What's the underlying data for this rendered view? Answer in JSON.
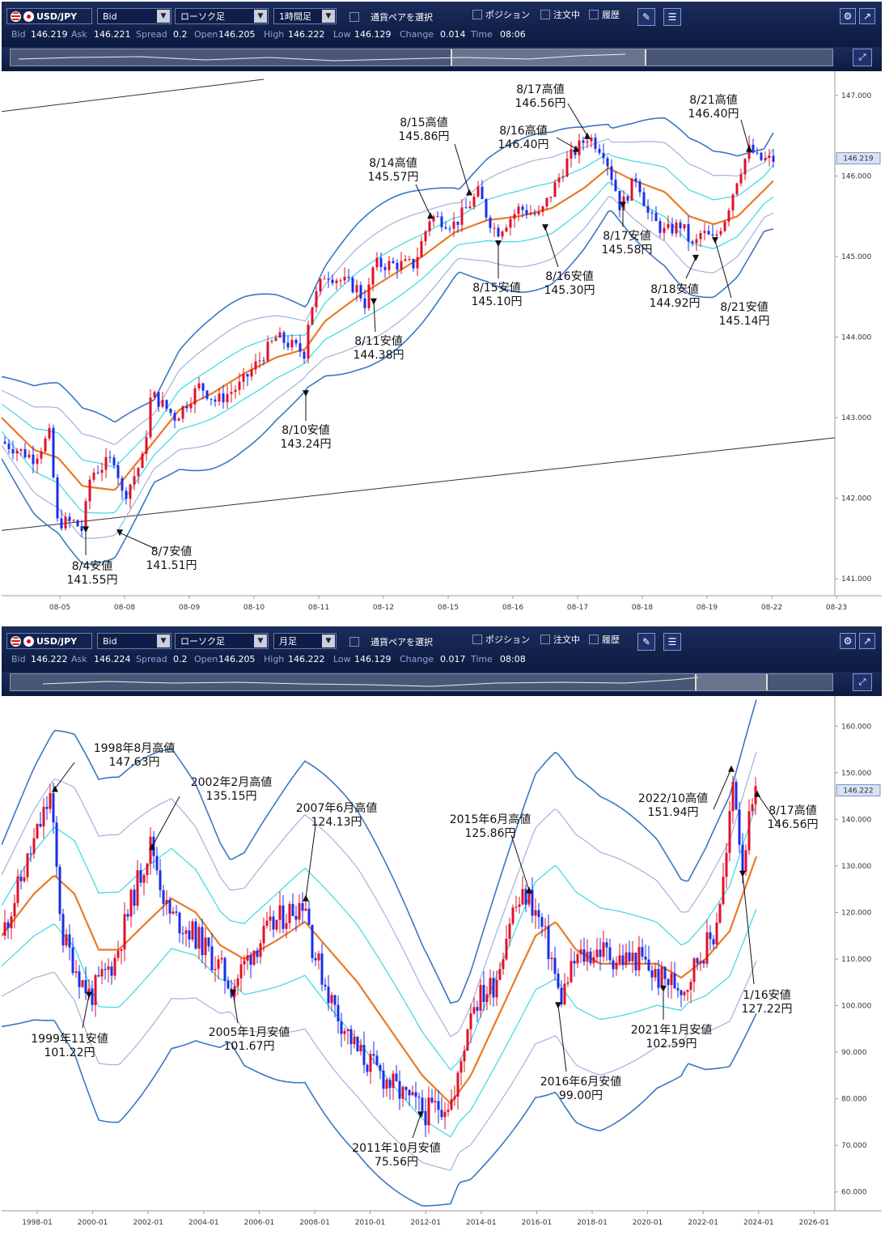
{
  "panels": [
    {
      "toolbar": {
        "pair": "USD/JPY",
        "price_type": "Bid",
        "chart_type": "ローソク足",
        "period": "1時間足",
        "pair_select": "通貨ペアを選択",
        "position": "ポジション",
        "orders": "注文中",
        "history": "履歴"
      },
      "info": {
        "bid_label": "Bid",
        "bid": "146.219",
        "ask_label": "Ask",
        "ask": "146.221",
        "spread_label": "Spread",
        "spread": "0.2",
        "open_label": "Open",
        "open": "146.205",
        "high_label": "High",
        "high": "146.222",
        "low_label": "Low",
        "low": "146.129",
        "change_label": "Change",
        "change": "0.014",
        "time_label": "Time",
        "time": "08:06"
      },
      "current_price": "146.219",
      "chart_data": {
        "type": "candlestick",
        "price_axis": [
          "147.000",
          "146.000",
          "145.000",
          "144.000",
          "143.000",
          "142.000",
          "141.000"
        ],
        "ylim": [
          140.85,
          147.2
        ],
        "date_axis": [
          "08-05",
          "08-08",
          "08-09",
          "08-10",
          "08-11",
          "08-12",
          "08-15",
          "08-16",
          "08-17",
          "08-18",
          "08-19",
          "08-22",
          "08-23"
        ],
        "path": [
          [
            0,
            142.7
          ],
          [
            40,
            142.5
          ],
          [
            60,
            142.8
          ],
          [
            68,
            141.7
          ],
          [
            90,
            141.7
          ],
          [
            100,
            141.6
          ],
          [
            110,
            142.3
          ],
          [
            140,
            142.5
          ],
          [
            150,
            142.0
          ],
          [
            175,
            142.5
          ],
          [
            185,
            143.3
          ],
          [
            215,
            143.0
          ],
          [
            245,
            143.4
          ],
          [
            265,
            143.2
          ],
          [
            295,
            143.4
          ],
          [
            340,
            144.0
          ],
          [
            375,
            143.8
          ],
          [
            380,
            144.3
          ],
          [
            400,
            144.8
          ],
          [
            440,
            144.6
          ],
          [
            450,
            144.4
          ],
          [
            460,
            144.9
          ],
          [
            510,
            144.9
          ],
          [
            530,
            145.5
          ],
          [
            560,
            145.4
          ],
          [
            590,
            145.8
          ],
          [
            600,
            145.5
          ],
          [
            612,
            145.3
          ],
          [
            640,
            145.6
          ],
          [
            665,
            145.5
          ],
          [
            680,
            145.8
          ],
          [
            700,
            146.2
          ],
          [
            725,
            146.5
          ],
          [
            745,
            146.3
          ],
          [
            760,
            145.8
          ],
          [
            765,
            145.6
          ],
          [
            785,
            146.0
          ],
          [
            800,
            145.5
          ],
          [
            820,
            145.3
          ],
          [
            840,
            145.4
          ],
          [
            855,
            145.1
          ],
          [
            865,
            145.3
          ],
          [
            880,
            145.2
          ],
          [
            895,
            145.5
          ],
          [
            910,
            146.0
          ],
          [
            925,
            146.35
          ],
          [
            935,
            146.2
          ],
          [
            955,
            146.2
          ]
        ],
        "mid_band": [
          [
            0,
            143.0
          ],
          [
            40,
            142.6
          ],
          [
            70,
            142.5
          ],
          [
            100,
            142.15
          ],
          [
            140,
            142.1
          ],
          [
            180,
            142.6
          ],
          [
            220,
            143.1
          ],
          [
            260,
            143.3
          ],
          [
            300,
            143.55
          ],
          [
            340,
            143.75
          ],
          [
            375,
            143.85
          ],
          [
            400,
            144.2
          ],
          [
            440,
            144.5
          ],
          [
            480,
            144.75
          ],
          [
            520,
            145.0
          ],
          [
            560,
            145.3
          ],
          [
            600,
            145.45
          ],
          [
            640,
            145.5
          ],
          [
            680,
            145.6
          ],
          [
            720,
            145.85
          ],
          [
            750,
            146.1
          ],
          [
            780,
            145.95
          ],
          [
            820,
            145.8
          ],
          [
            850,
            145.5
          ],
          [
            880,
            145.4
          ],
          [
            910,
            145.5
          ],
          [
            955,
            145.95
          ]
        ],
        "annotations": [
          {
            "label": "8/4安値",
            "value": "141.55円",
            "price": 141.55
          },
          {
            "label": "8/7安値",
            "value": "141.51円",
            "price": 141.51
          },
          {
            "label": "8/10安値",
            "value": "143.24円",
            "price": 143.24
          },
          {
            "label": "8/11安値",
            "value": "144.38円",
            "price": 144.38
          },
          {
            "label": "8/14高値",
            "value": "145.57円",
            "price": 145.57
          },
          {
            "label": "8/15高値",
            "value": "145.86円",
            "price": 145.86
          },
          {
            "label": "8/15安値",
            "value": "145.10円",
            "price": 145.1
          },
          {
            "label": "8/16高値",
            "value": "146.40円",
            "price": 146.4
          },
          {
            "label": "8/16安値",
            "value": "145.30円",
            "price": 145.3
          },
          {
            "label": "8/17高値",
            "value": "146.56円",
            "price": 146.56
          },
          {
            "label": "8/17安値",
            "value": "145.58円",
            "price": 145.58
          },
          {
            "label": "8/18安値",
            "value": "144.92円",
            "price": 144.92
          },
          {
            "label": "8/21高値",
            "value": "146.40円",
            "price": 146.4
          },
          {
            "label": "8/21安値",
            "value": "145.14円",
            "price": 145.14
          }
        ]
      }
    },
    {
      "toolbar": {
        "pair": "USD/JPY",
        "price_type": "Bid",
        "chart_type": "ローソク足",
        "period": "月足",
        "pair_select": "通貨ペアを選択",
        "position": "ポジション",
        "orders": "注文中",
        "history": "履歴"
      },
      "info": {
        "bid_label": "Bid",
        "bid": "146.222",
        "ask_label": "Ask",
        "ask": "146.224",
        "spread_label": "Spread",
        "spread": "0.2",
        "open_label": "Open",
        "open": "146.205",
        "high_label": "High",
        "high": "146.222",
        "low_label": "Low",
        "low": "146.129",
        "change_label": "Change",
        "change": "0.017",
        "time_label": "Time",
        "time": "08:08"
      },
      "current_price": "146.222",
      "chart_data": {
        "type": "candlestick",
        "price_axis": [
          "160.000",
          "150.000",
          "140.000",
          "130.000",
          "120.000",
          "110.000",
          "100.000",
          "90.000",
          "80.000",
          "70.000",
          "60.000"
        ],
        "ylim": [
          57,
          163
        ],
        "date_axis": [
          "1998-01",
          "2000-01",
          "2002-01",
          "2004-01",
          "2006-01",
          "2008-01",
          "2010-01",
          "2012-01",
          "2014-01",
          "2016-01",
          "2018-01",
          "2020-01",
          "2022-01",
          "2024-01",
          "2026-01"
        ],
        "path": [
          [
            0,
            115
          ],
          [
            30,
            130
          ],
          [
            60,
            145
          ],
          [
            75,
            115
          ],
          [
            100,
            105
          ],
          [
            110,
            102
          ],
          [
            140,
            110
          ],
          [
            165,
            125
          ],
          [
            185,
            135
          ],
          [
            205,
            120
          ],
          [
            240,
            115
          ],
          [
            270,
            108
          ],
          [
            285,
            104
          ],
          [
            310,
            112
          ],
          [
            340,
            118
          ],
          [
            375,
            123
          ],
          [
            385,
            112
          ],
          [
            410,
            100
          ],
          [
            440,
            90
          ],
          [
            470,
            85
          ],
          [
            500,
            80
          ],
          [
            525,
            77
          ],
          [
            545,
            79
          ],
          [
            560,
            80
          ],
          [
            580,
            100
          ],
          [
            610,
            105
          ],
          [
            630,
            120
          ],
          [
            650,
            124
          ],
          [
            665,
            118
          ],
          [
            680,
            110
          ],
          [
            690,
            101
          ],
          [
            710,
            110
          ],
          [
            740,
            112
          ],
          [
            760,
            110
          ],
          [
            790,
            110
          ],
          [
            810,
            106
          ],
          [
            830,
            105
          ],
          [
            845,
            104
          ],
          [
            860,
            110
          ],
          [
            880,
            115
          ],
          [
            895,
            130
          ],
          [
            905,
            150
          ],
          [
            915,
            130
          ],
          [
            925,
            140
          ],
          [
            935,
            146
          ]
        ],
        "mid_band": [
          [
            0,
            115
          ],
          [
            40,
            124
          ],
          [
            65,
            128
          ],
          [
            90,
            124
          ],
          [
            120,
            112
          ],
          [
            145,
            112
          ],
          [
            180,
            118
          ],
          [
            210,
            123
          ],
          [
            240,
            120
          ],
          [
            270,
            113
          ],
          [
            300,
            110
          ],
          [
            340,
            114
          ],
          [
            375,
            118
          ],
          [
            400,
            113
          ],
          [
            440,
            105
          ],
          [
            480,
            95
          ],
          [
            520,
            85
          ],
          [
            555,
            79
          ],
          [
            580,
            85
          ],
          [
            620,
            100
          ],
          [
            660,
            115
          ],
          [
            685,
            118
          ],
          [
            710,
            112
          ],
          [
            740,
            109
          ],
          [
            780,
            109
          ],
          [
            810,
            109
          ],
          [
            840,
            106
          ],
          [
            870,
            110
          ],
          [
            900,
            116
          ],
          [
            935,
            133
          ]
        ],
        "annotations": [
          {
            "label": "1998年8月高値",
            "value": "147.63円",
            "price": 147.63
          },
          {
            "label": "1999年11安値",
            "value": "101.22円",
            "price": 101.22
          },
          {
            "label": "2002年2月高値",
            "value": "135.15円",
            "price": 135.15
          },
          {
            "label": "2005年1月安値",
            "value": "101.67円",
            "price": 101.67
          },
          {
            "label": "2007年6月高値",
            "value": "124.13円",
            "price": 124.13
          },
          {
            "label": "2011年10月安値",
            "value": "75.56円",
            "price": 75.56
          },
          {
            "label": "2015年6月高値",
            "value": "125.86円",
            "price": 125.86
          },
          {
            "label": "2016年6月安値",
            "value": "99.00円",
            "price": 99.0
          },
          {
            "label": "2021年1月安値",
            "value": "102.59円",
            "price": 102.59
          },
          {
            "label": "2022/10高値",
            "value": "151.94円",
            "price": 151.94
          },
          {
            "label": "8/17高値",
            "value": "146.56円",
            "price": 146.56
          },
          {
            "label": "1/16安値",
            "value": "127.22円",
            "price": 127.22
          }
        ]
      }
    }
  ]
}
